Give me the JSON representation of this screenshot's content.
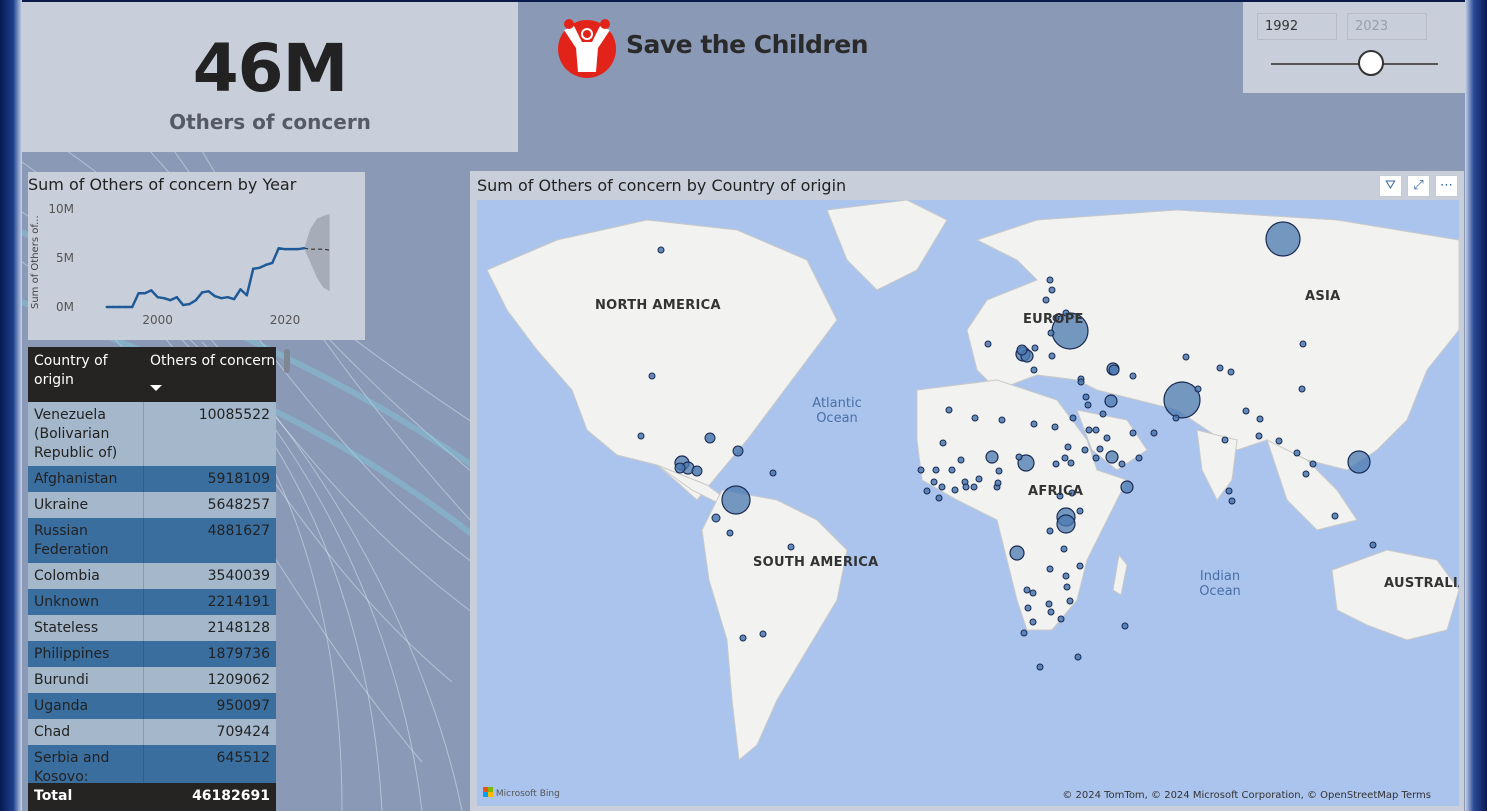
{
  "kpi": {
    "value": "46M",
    "label": "Others of concern"
  },
  "logo": {
    "text": "Save the Children"
  },
  "slicer": {
    "start_year": "1992",
    "end_year": "2023",
    "position": 0.6
  },
  "line_chart": {
    "title": "Sum of Others of concern by Year",
    "ylabel": "Sum of Others of...",
    "yticks": [
      "10M",
      "5M",
      "0M"
    ],
    "xticks": [
      "2000",
      "2020"
    ]
  },
  "chart_data": {
    "type": "line",
    "title": "Sum of Others of concern by Year",
    "ylabel": "Sum of Others of concern",
    "xlabel": "",
    "ylim": [
      0,
      10000000
    ],
    "x": [
      1992,
      1993,
      1994,
      1995,
      1996,
      1997,
      1998,
      1999,
      2000,
      2001,
      2002,
      2003,
      2004,
      2005,
      2006,
      2007,
      2008,
      2009,
      2010,
      2011,
      2012,
      2013,
      2014,
      2015,
      2016,
      2017,
      2018,
      2019,
      2020,
      2021,
      2022,
      2023
    ],
    "series": [
      {
        "values": [
          0,
          0,
          0,
          0,
          0,
          1400000,
          1400000,
          1700000,
          1000000,
          900000,
          700000,
          1000000,
          200000,
          300000,
          700000,
          1500000,
          1600000,
          1100000,
          900000,
          1000000,
          800000,
          1800000,
          1200000,
          3900000,
          4000000,
          4300000,
          4500000,
          6000000,
          5900000,
          5900000,
          5900000,
          6000000
        ]
      }
    ],
    "forecast": {
      "values": [
        6000000,
        5900000,
        5900000,
        5900000,
        5800000
      ],
      "upper": [
        6000000,
        8000000,
        9000000,
        9300000,
        9500000
      ],
      "lower": [
        6000000,
        4500000,
        3000000,
        2000000,
        1600000
      ]
    }
  },
  "table": {
    "headers": {
      "country": "Country of origin",
      "value": "Others of concern"
    },
    "rows": [
      {
        "country": "Venezuela (Bolivarian Republic of)",
        "value": "10085522"
      },
      {
        "country": "Afghanistan",
        "value": "5918109"
      },
      {
        "country": "Ukraine",
        "value": "5648257"
      },
      {
        "country": "Russian Federation",
        "value": "4881627"
      },
      {
        "country": "Colombia",
        "value": "3540039"
      },
      {
        "country": "Unknown",
        "value": "2214191"
      },
      {
        "country": "Stateless",
        "value": "2148128"
      },
      {
        "country": "Philippines",
        "value": "1879736"
      },
      {
        "country": "Burundi",
        "value": "1209062"
      },
      {
        "country": "Uganda",
        "value": "950097"
      },
      {
        "country": "Chad",
        "value": "709424"
      },
      {
        "country": "Serbia and Kosovo:",
        "value": "645512"
      }
    ],
    "total": {
      "label": "Total",
      "value": "46182691"
    }
  },
  "map": {
    "title": "Sum of Others of concern by Country of origin",
    "labels": {
      "north_america": "NORTH AMERICA",
      "south_america": "SOUTH AMERICA",
      "europe": "EUROPE",
      "africa": "AFRICA",
      "asia": "ASIA",
      "australia": "AUSTRALIA",
      "atlantic": "Atlantic Ocean",
      "indian": "Indian Ocean"
    },
    "bing": "Microsoft Bing",
    "copyright": "© 2024 TomTom, © 2024 Microsoft Corporation,",
    "osm": "© OpenStreetMap",
    "terms": "Terms",
    "bubble_color": "#4a78b0"
  },
  "colors": {
    "accent": "#e2231a",
    "header_dark": "#252423",
    "row_dark": "#3a6e9f",
    "row_light": "#a4b7cb"
  }
}
